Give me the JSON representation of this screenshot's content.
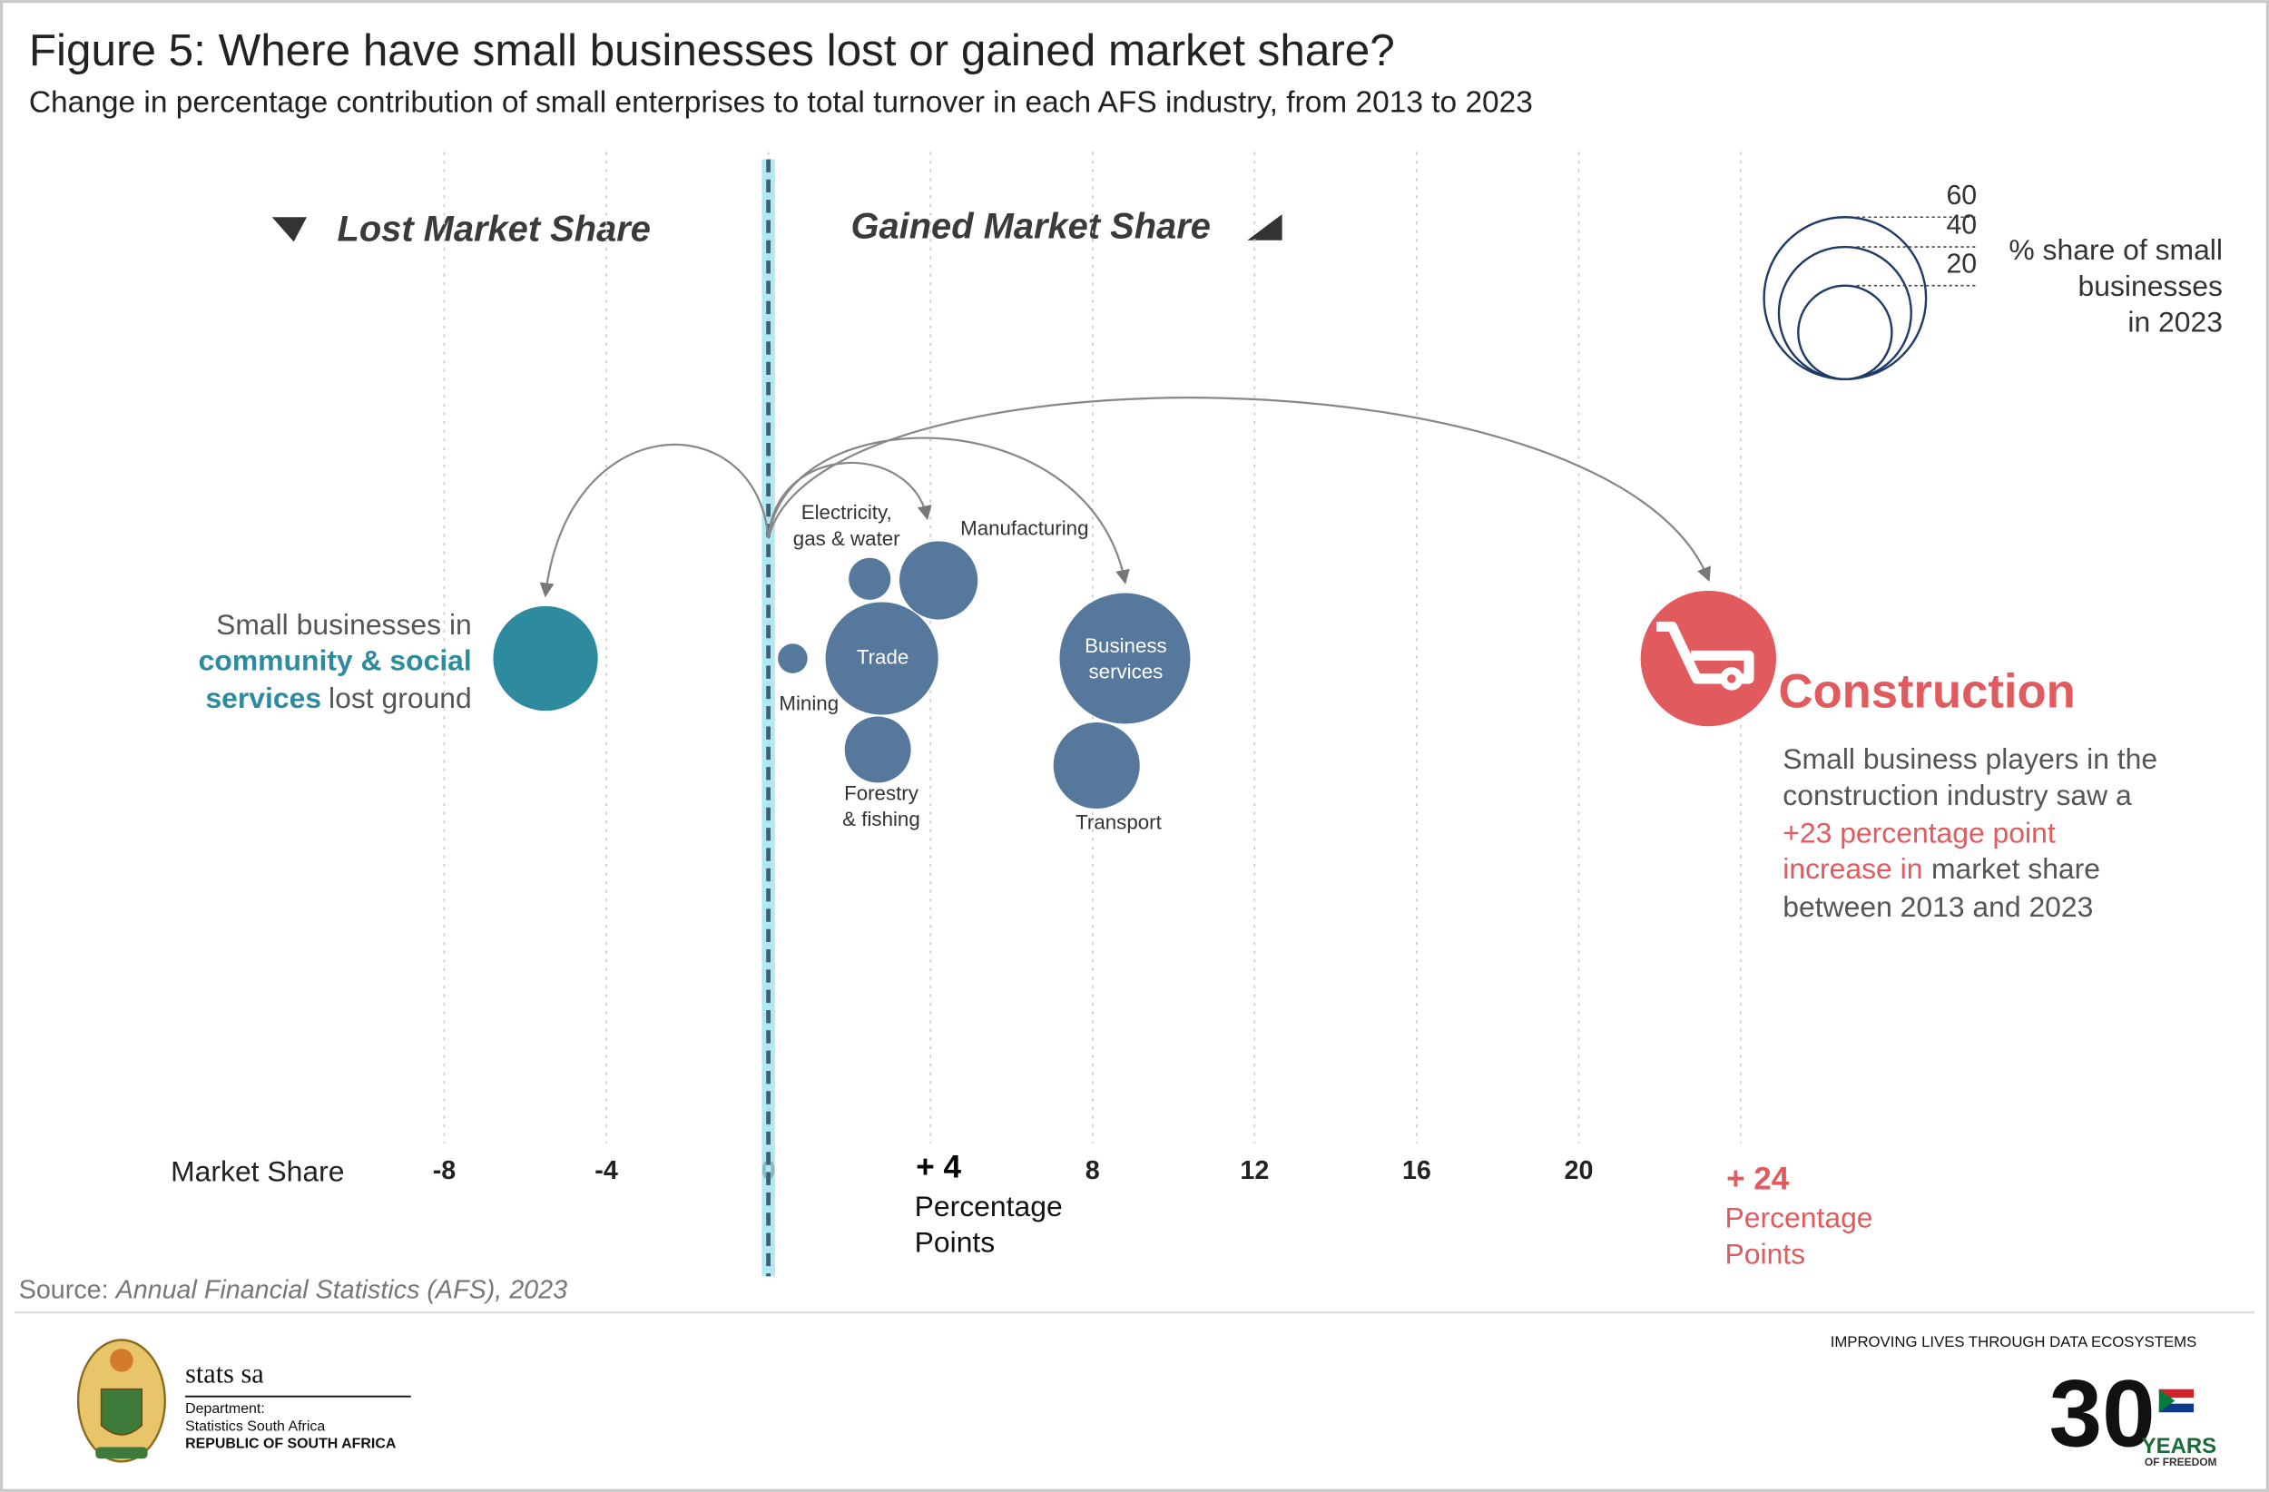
{
  "chart_data": {
    "type": "bubble",
    "title": "Figure 5: Where have small businesses lost or gained market share?",
    "subtitle": "Change in percentage contribution of small enterprises to total turnover in each AFS industry, from 2013 to 2023",
    "xlabel": "Market Share",
    "x_unit": [
      "Percentage",
      "Points"
    ],
    "lost_label": "Lost Market Share",
    "gained_label": "Gained Market Share",
    "categories": [
      null,
      "Mining",
      "Electricity,\ngas & water",
      "Trade",
      "Forestry\n& fishing",
      "Manufacturing",
      "Business\nservices",
      "Transport",
      "Construction"
    ],
    "x": [
      -5.5,
      0.6,
      2.5,
      2.8,
      2.7,
      4.2,
      8.8,
      8.1,
      23.2
    ],
    "sizes": [
      25,
      2,
      4,
      29,
      10,
      14,
      39,
      17,
      42
    ],
    "colors": [
      "#2e8a9e",
      "#56789c",
      "#56789c",
      "#56789c",
      "#56789c",
      "#56789c",
      "#56789c",
      "#56789c",
      "#e05a5e"
    ],
    "xlim": [
      -12,
      27
    ],
    "xticks": [
      -8,
      -4,
      0,
      {
        "value": 4,
        "label": "+ 4"
      },
      8,
      12,
      16,
      20,
      {
        "value": 24,
        "label": "+ 24"
      }
    ],
    "grid": true,
    "size_legend": {
      "values": [
        60,
        40,
        20
      ],
      "title": [
        "% share of small",
        "businesses",
        "in 2023"
      ],
      "color": "#1f3a68"
    },
    "annotations": {
      "community": [
        "Small businesses in",
        "community & social",
        "services",
        "lost ground"
      ],
      "construction": [
        "Small business players in the",
        "construction industry saw a",
        "+23 percentage point",
        "increase in",
        "market share",
        "between 2013 and 2023"
      ]
    },
    "source": {
      "prefix": "Source:",
      "text": "Annual Financial Statistics (AFS), 2023"
    }
  },
  "footer": {
    "logo_name": "stats sa",
    "department": "Department:",
    "agency": "Statistics South Africa",
    "country": "REPUBLIC OF SOUTH AFRICA",
    "slogan": "IMPROVING LIVES THROUGH DATA ECOSYSTEMS",
    "anniversary": "30",
    "years": "YEARS",
    "freedom": "OF FREEDOM"
  }
}
